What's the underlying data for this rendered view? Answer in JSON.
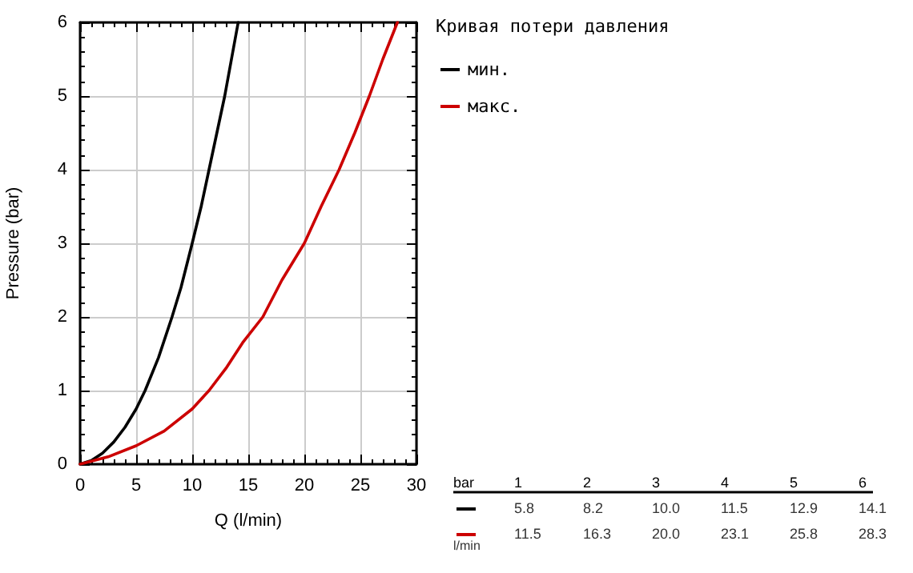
{
  "chart_data": {
    "type": "line",
    "xlabel": "Q (l/min)",
    "ylabel": "Pressure (bar)",
    "legend_title": "Кривая потери давления",
    "series": [
      {
        "name": "мин.",
        "color": "#000000",
        "x": [
          0,
          1,
          2,
          3,
          4,
          5,
          5.8,
          7,
          8.2,
          9,
          10.0,
          10.8,
          11.5,
          12.2,
          12.9,
          13.5,
          14.1
        ],
        "values": [
          0,
          0.05,
          0.15,
          0.3,
          0.5,
          0.75,
          1,
          1.45,
          2,
          2.4,
          3,
          3.5,
          4,
          4.5,
          5,
          5.5,
          6
        ]
      },
      {
        "name": "макс.",
        "color": "#cc0000",
        "x": [
          0,
          2.5,
          5,
          7.5,
          10,
          11.5,
          13,
          14.5,
          16.3,
          18,
          20.0,
          21.5,
          23.1,
          24.5,
          25.8,
          27,
          28.3
        ],
        "values": [
          0,
          0.1,
          0.25,
          0.45,
          0.75,
          1,
          1.3,
          1.65,
          2,
          2.5,
          3,
          3.5,
          4,
          4.5,
          5,
          5.5,
          6
        ]
      }
    ],
    "xlim": [
      0,
      30
    ],
    "xticks": [
      0,
      5,
      10,
      15,
      20,
      25,
      30
    ],
    "ylim": [
      0,
      6
    ],
    "yticks": [
      0,
      1,
      2,
      3,
      4,
      5,
      6
    ],
    "grid": true,
    "legend": "top right",
    "marker": "none",
    "line_style": "solid",
    "annotations": [
      "bar",
      "1",
      "2",
      "3",
      "4",
      "5",
      "6",
      "5.8",
      "8.2",
      "10.0",
      "11.5",
      "12.9",
      "14.1",
      "11.5",
      "16.3",
      "20.0",
      "23.1",
      "25.8",
      "28.3",
      "l/min"
    ]
  }
}
